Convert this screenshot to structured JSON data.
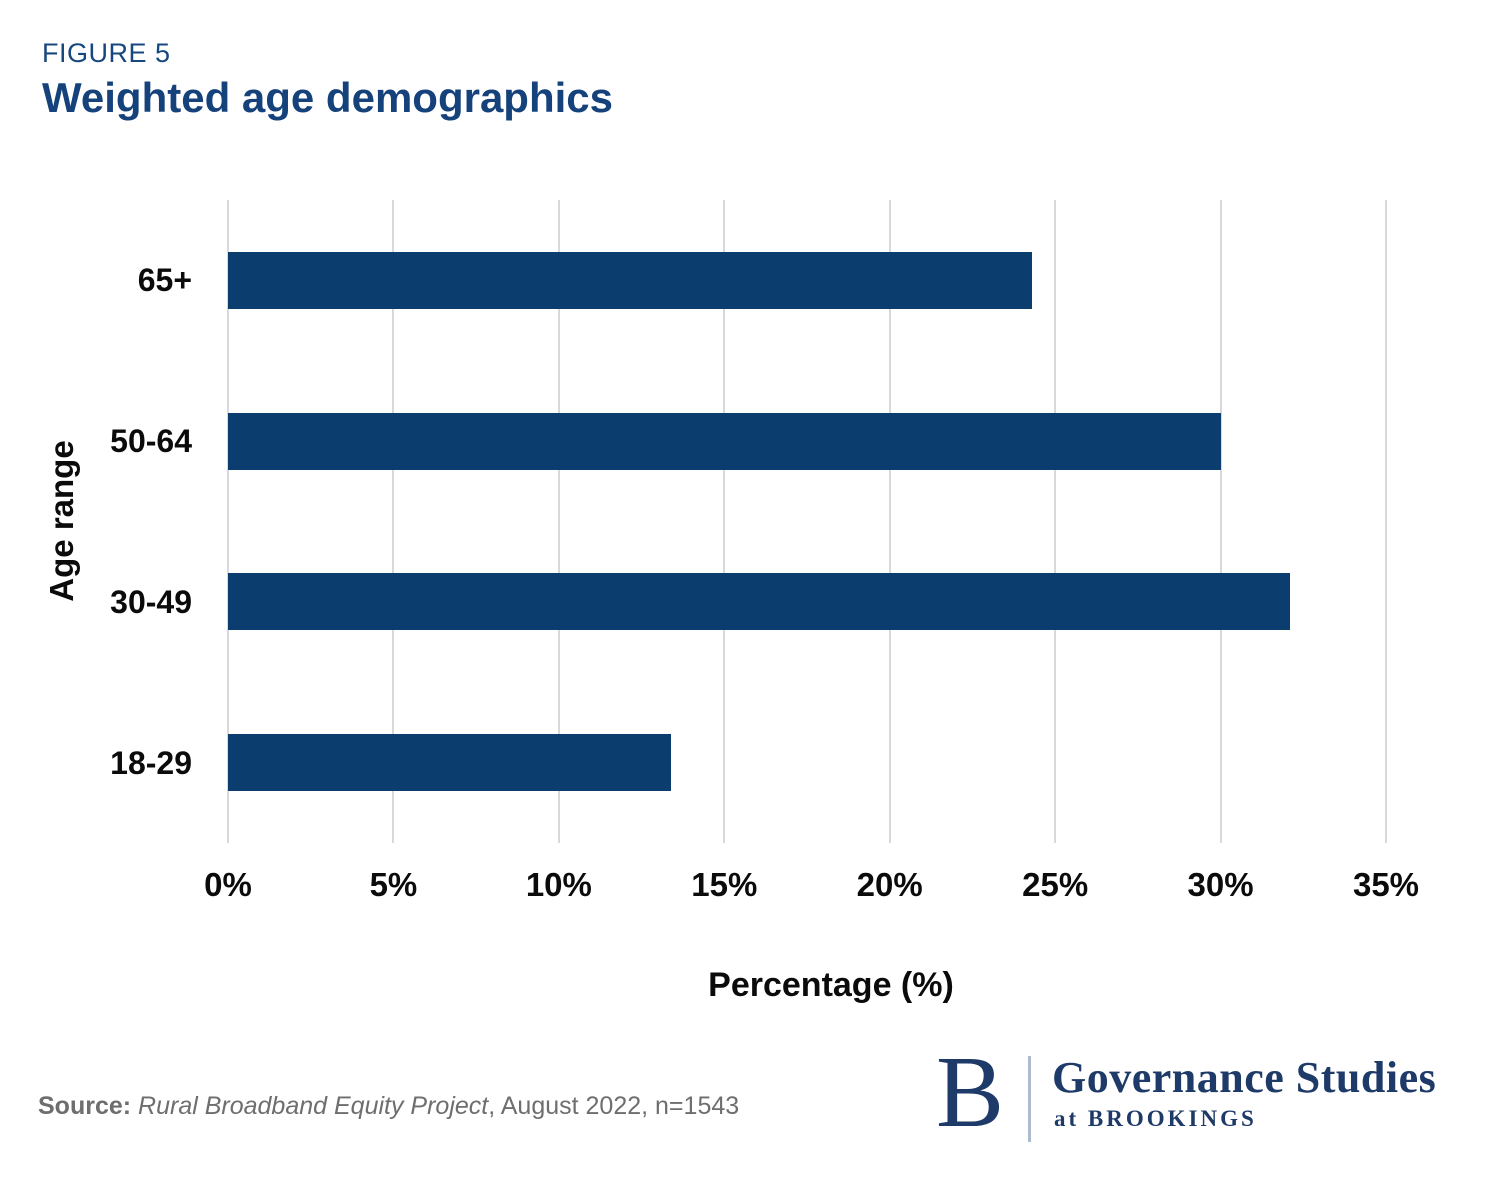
{
  "figure": {
    "label": "FIGURE 5",
    "title": "Weighted age demographics"
  },
  "chart_data": {
    "type": "bar",
    "orientation": "horizontal",
    "categories": [
      "65+",
      "50-64",
      "30-49",
      "18-29"
    ],
    "values": [
      24.3,
      30.0,
      32.1,
      13.4
    ],
    "title": "Weighted age demographics",
    "xlabel": "Percentage (%)",
    "ylabel": "Age range",
    "xlim": [
      0,
      35
    ],
    "xticks": [
      {
        "value": 0,
        "label": "0%"
      },
      {
        "value": 5,
        "label": "5%"
      },
      {
        "value": 10,
        "label": "10%"
      },
      {
        "value": 15,
        "label": "15%"
      },
      {
        "value": 20,
        "label": "20%"
      },
      {
        "value": 25,
        "label": "25%"
      },
      {
        "value": 30,
        "label": "30%"
      },
      {
        "value": 35,
        "label": "35%"
      }
    ],
    "grid": "vertical-on",
    "legend": "none",
    "bar_color": "#0B3D6F",
    "grid_color": "#D9D9D9"
  },
  "source": {
    "prefix": "Source: ",
    "project": "Rural Broadband Equity Project",
    "suffix": ", August 2022, n=1543"
  },
  "logo": {
    "letter": "B",
    "org": "Governance Studies",
    "sub": "at BROOKINGS"
  },
  "colors": {
    "bar_navy": "#0B3D6F",
    "title_navy": "#17477F",
    "logo_navy": "#1E3A68",
    "gridline_gray": "#D9D9D9",
    "source_gray": "#6E6E6E",
    "background": "#FFFFFF"
  }
}
